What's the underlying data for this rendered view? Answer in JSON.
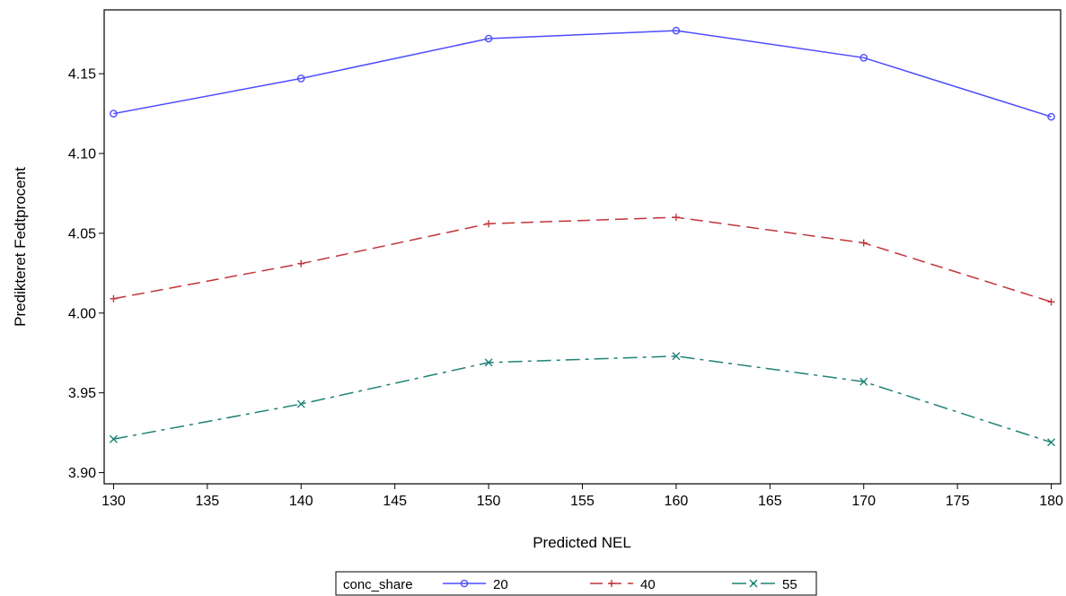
{
  "chart_data": {
    "type": "line",
    "title": "",
    "xlabel": "Predicted NEL",
    "ylabel": "Predikteret Fedtprocent",
    "xlim": [
      129.5,
      180.5
    ],
    "ylim": [
      3.893,
      4.19
    ],
    "xticks": [
      130,
      135,
      140,
      145,
      150,
      155,
      160,
      165,
      170,
      175,
      180
    ],
    "yticks": [
      3.9,
      3.95,
      4.0,
      4.05,
      4.1,
      4.15
    ],
    "ytick_labels": [
      "3.90",
      "3.95",
      "4.00",
      "4.05",
      "4.10",
      "4.15"
    ],
    "grid": false,
    "legend": {
      "title": "conc_share",
      "position": "bottom-center"
    },
    "x": [
      130,
      140,
      150,
      160,
      170,
      180
    ],
    "series": [
      {
        "name": "20",
        "values": [
          4.125,
          4.147,
          4.172,
          4.177,
          4.16,
          4.123
        ],
        "color": "#4d4dff",
        "marker": "circle",
        "dash": "solid"
      },
      {
        "name": "40",
        "values": [
          4.009,
          4.031,
          4.056,
          4.06,
          4.044,
          4.007
        ],
        "color": "#c2343a",
        "marker": "plus",
        "dash": "dashed"
      },
      {
        "name": "55",
        "values": [
          3.921,
          3.943,
          3.969,
          3.973,
          3.957,
          3.919
        ],
        "color": "#1f8277",
        "marker": "x",
        "dash": "dashdot"
      }
    ]
  }
}
